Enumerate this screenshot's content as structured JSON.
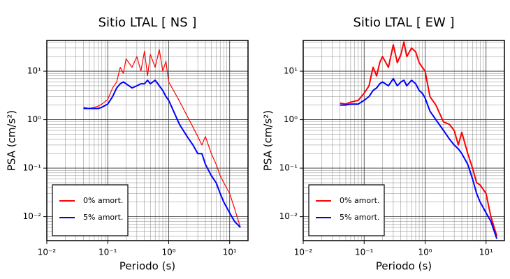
{
  "chart_data": [
    {
      "type": "line",
      "title": "Sitio LTAL [ NS ]",
      "xlabel": "Periodo (s)",
      "ylabel": "PSA (cm/s²)",
      "xscale": "log",
      "yscale": "log",
      "grid": true,
      "legend": "lower left",
      "xlim": [
        0.01,
        20
      ],
      "ylim": [
        0.0032,
        43
      ],
      "xticks": [
        {
          "value": 0.01,
          "label": "10⁻²"
        },
        {
          "value": 0.1,
          "label": "10⁻¹"
        },
        {
          "value": 1,
          "label": "10⁰"
        },
        {
          "value": 10,
          "label": "10¹"
        }
      ],
      "yticks": [
        {
          "value": 0.01,
          "label": "10⁻²"
        },
        {
          "value": 0.1,
          "label": "10⁻¹"
        },
        {
          "value": 1,
          "label": "10⁰"
        },
        {
          "value": 10,
          "label": "10¹"
        }
      ],
      "x": [
        0.04,
        0.05,
        0.06,
        0.07,
        0.08,
        0.1,
        0.12,
        0.14,
        0.16,
        0.18,
        0.2,
        0.25,
        0.3,
        0.35,
        0.4,
        0.45,
        0.5,
        0.6,
        0.7,
        0.8,
        0.9,
        1.0,
        1.2,
        1.5,
        2,
        2.5,
        3,
        3.5,
        4,
        5,
        6,
        7,
        8,
        10,
        12,
        15
      ],
      "series": [
        {
          "name": "0% amort.",
          "color": "#ff0000",
          "linewidth": 1.2,
          "values": [
            1.8,
            1.7,
            1.8,
            1.9,
            2.1,
            2.6,
            4.5,
            6,
            12,
            9,
            18,
            12,
            20,
            10,
            26,
            8,
            22,
            12,
            28,
            10,
            16,
            6,
            4,
            2.4,
            1.2,
            0.7,
            0.45,
            0.3,
            0.45,
            0.2,
            0.12,
            0.07,
            0.05,
            0.03,
            0.015,
            0.006
          ]
        },
        {
          "name": "5% amort.",
          "color": "#0000ff",
          "linewidth": 2,
          "values": [
            1.7,
            1.7,
            1.7,
            1.7,
            1.8,
            2.1,
            3,
            4.5,
            5.5,
            6,
            5.5,
            4.5,
            5,
            5.5,
            5.5,
            6.5,
            5.5,
            6.5,
            5,
            4,
            3,
            2.5,
            1.5,
            0.8,
            0.45,
            0.3,
            0.2,
            0.2,
            0.12,
            0.07,
            0.05,
            0.03,
            0.02,
            0.012,
            0.008,
            0.006
          ]
        }
      ]
    },
    {
      "type": "line",
      "title": "Sitio LTAL [ EW ]",
      "xlabel": "Periodo (s)",
      "ylabel": "PSA (cm/s²)",
      "xscale": "log",
      "yscale": "log",
      "grid": true,
      "legend": "lower left",
      "xlim": [
        0.01,
        20
      ],
      "ylim": [
        0.0032,
        43
      ],
      "xticks": [
        {
          "value": 0.01,
          "label": "10⁻²"
        },
        {
          "value": 0.1,
          "label": "10⁻¹"
        },
        {
          "value": 1,
          "label": "10⁰"
        },
        {
          "value": 10,
          "label": "10¹"
        }
      ],
      "yticks": [
        {
          "value": 0.01,
          "label": "10⁻²"
        },
        {
          "value": 0.1,
          "label": "10⁻¹"
        },
        {
          "value": 1,
          "label": "10⁰"
        },
        {
          "value": 10,
          "label": "10¹"
        }
      ],
      "x": [
        0.04,
        0.05,
        0.06,
        0.07,
        0.08,
        0.1,
        0.12,
        0.14,
        0.16,
        0.18,
        0.2,
        0.25,
        0.3,
        0.35,
        0.4,
        0.45,
        0.5,
        0.6,
        0.7,
        0.8,
        0.9,
        1.0,
        1.2,
        1.5,
        2,
        2.5,
        3,
        3.5,
        4,
        5,
        6,
        7,
        8,
        10,
        12,
        15
      ],
      "series": [
        {
          "name": "0% amort.",
          "color": "#ff0000",
          "linewidth": 2,
          "values": [
            2.2,
            2.1,
            2.3,
            2.4,
            2.5,
            3.5,
            5,
            12,
            8,
            15,
            20,
            12,
            35,
            15,
            22,
            40,
            20,
            30,
            25,
            15,
            12,
            10,
            3,
            2,
            0.9,
            0.8,
            0.6,
            0.3,
            0.55,
            0.2,
            0.1,
            0.05,
            0.045,
            0.03,
            0.01,
            0.004
          ]
        },
        {
          "name": "5% amort.",
          "color": "#0000ff",
          "linewidth": 2,
          "values": [
            2,
            2,
            2.1,
            2.1,
            2.1,
            2.5,
            3,
            4,
            4.5,
            5.5,
            6,
            5,
            7,
            5,
            6,
            6.5,
            5,
            6.5,
            5.5,
            4,
            3.5,
            2.8,
            1.5,
            1,
            0.6,
            0.4,
            0.3,
            0.25,
            0.2,
            0.12,
            0.06,
            0.03,
            0.02,
            0.012,
            0.008,
            0.0035
          ]
        }
      ]
    }
  ]
}
